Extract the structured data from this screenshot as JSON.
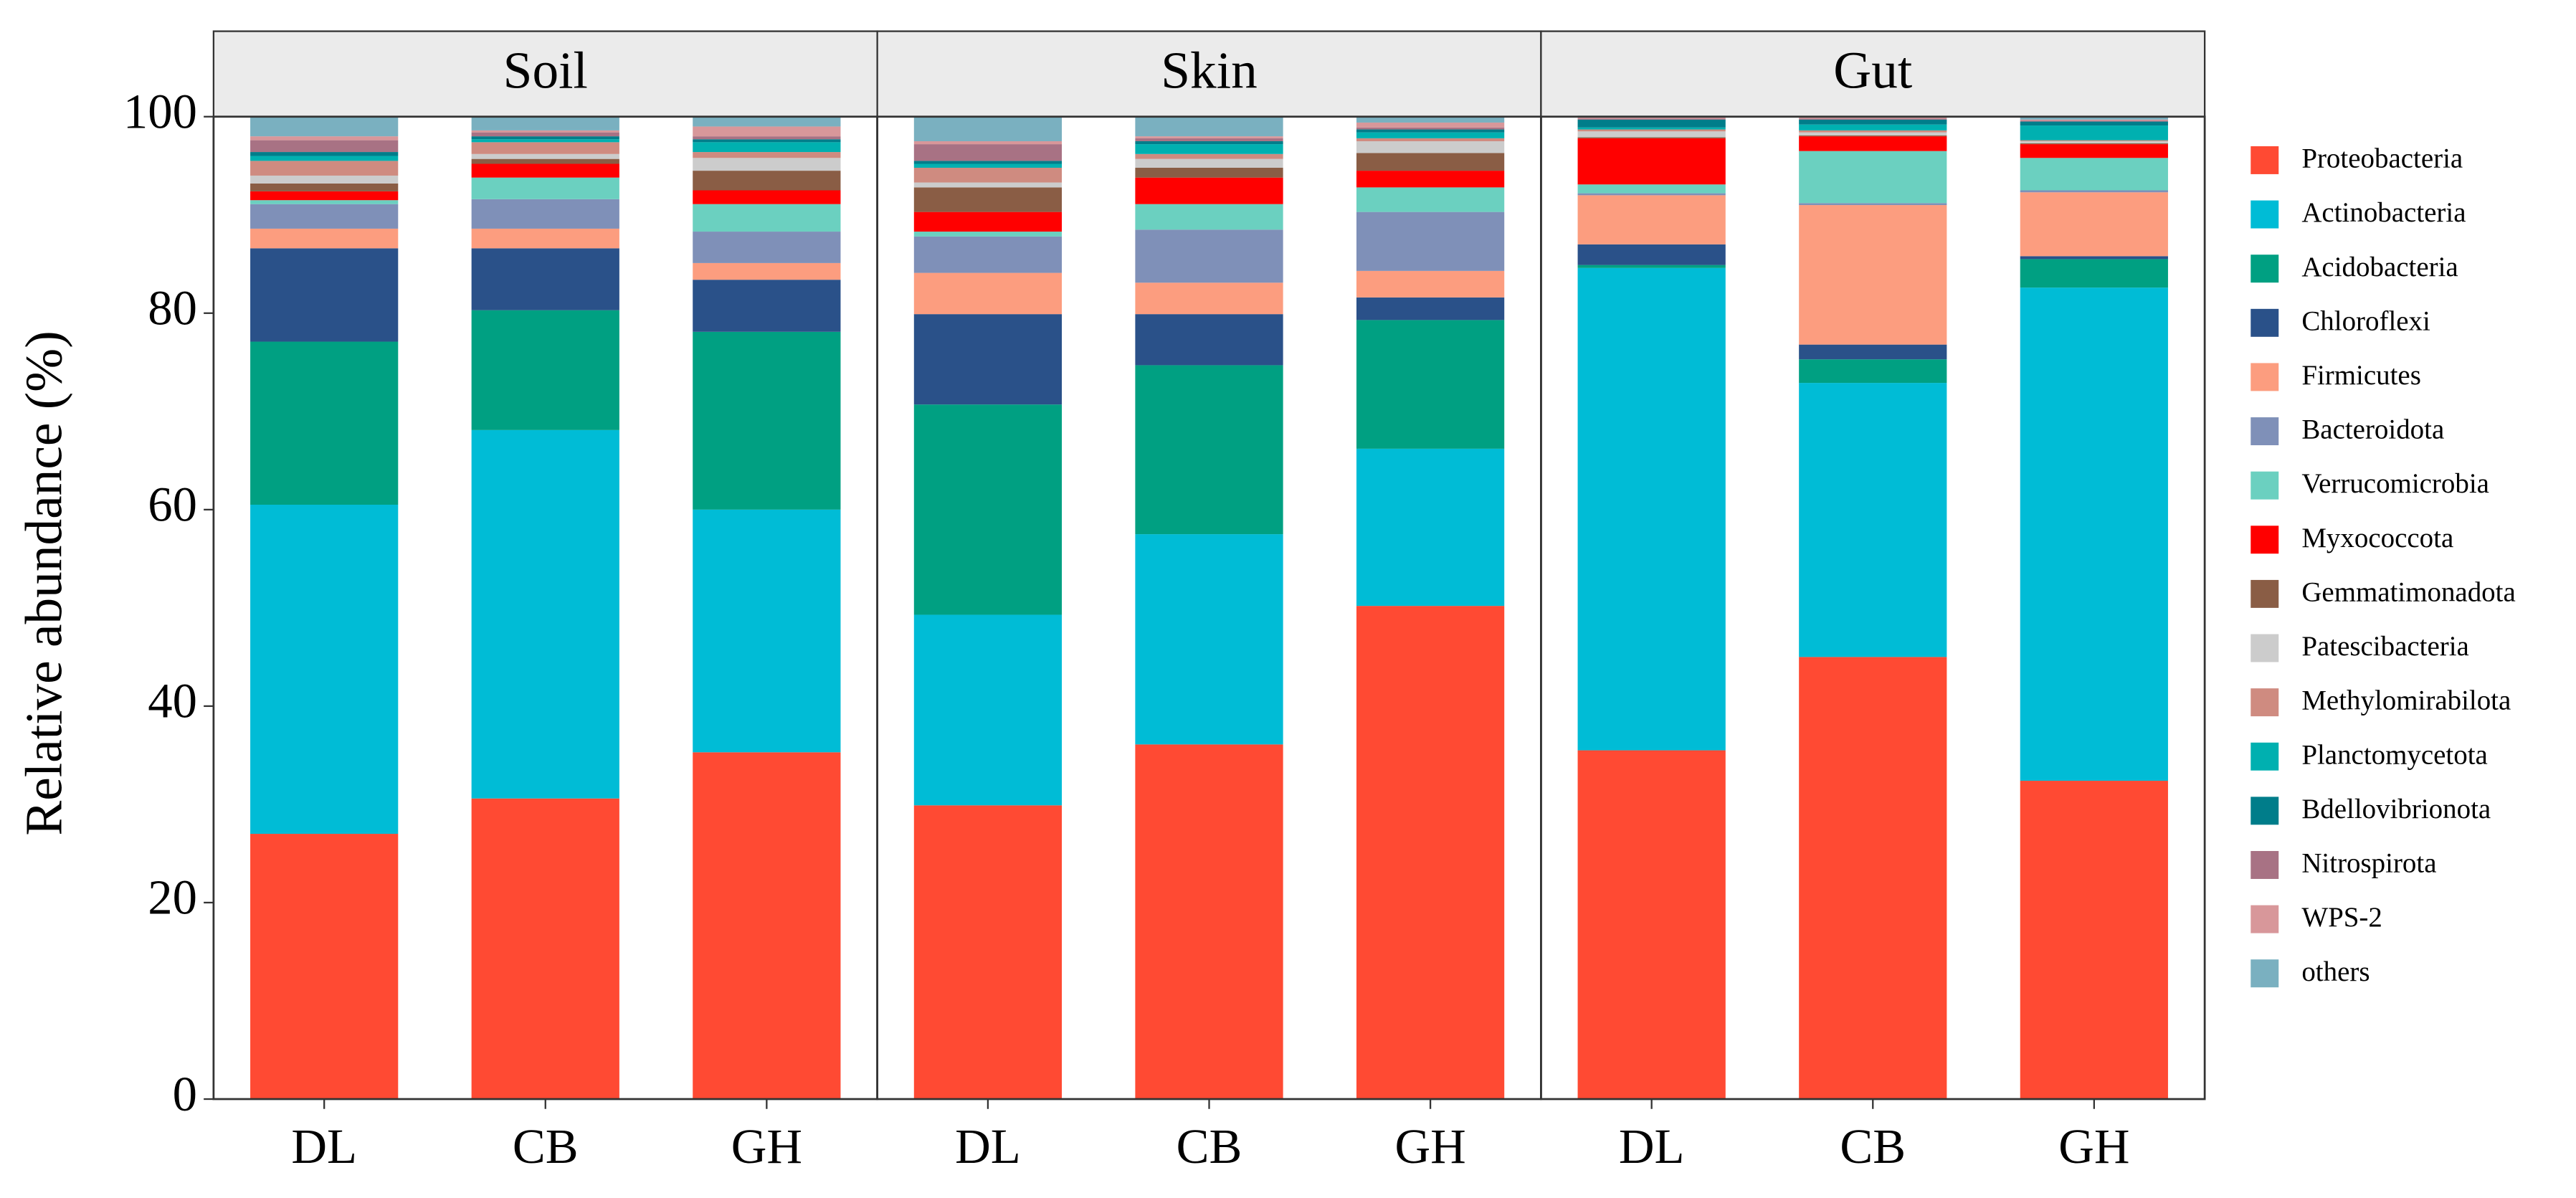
{
  "chart_data": {
    "type": "bar",
    "stacked": true,
    "ylabel": "Relative abundance (%)",
    "ylim": [
      0,
      100
    ],
    "yticks": [
      0,
      20,
      40,
      60,
      80,
      100
    ],
    "panels": [
      {
        "title": "Soil",
        "categories": [
          "DL",
          "CB",
          "GH"
        ]
      },
      {
        "title": "Skin",
        "categories": [
          "DL",
          "CB",
          "GH"
        ]
      },
      {
        "title": "Gut",
        "categories": [
          "DL",
          "CB",
          "GH"
        ]
      }
    ],
    "series": [
      {
        "name": "Proteobacteria",
        "color": "#ff4a33",
        "values": [
          [
            27,
            30.6,
            35.3
          ],
          [
            29.9,
            36.1,
            50.2
          ],
          [
            35.5,
            45,
            32.4
          ]
        ]
      },
      {
        "name": "Actinobacteria",
        "color": "#00bcd6",
        "values": [
          [
            33.5,
            37.5,
            24.7
          ],
          [
            19.4,
            21.4,
            16
          ],
          [
            49.1,
            27.9,
            50.2
          ]
        ]
      },
      {
        "name": "Acidobacteria",
        "color": "#00a082",
        "values": [
          [
            16.6,
            12.2,
            18.1
          ],
          [
            21.4,
            17.2,
            13.1
          ],
          [
            0.3,
            2.4,
            2.9
          ]
        ]
      },
      {
        "name": "Chloroflexi",
        "color": "#2a5189",
        "values": [
          [
            9.5,
            6.3,
            5.3
          ],
          [
            9.2,
            5.2,
            2.3
          ],
          [
            2.1,
            1.5,
            0.3
          ]
        ]
      },
      {
        "name": "Firmicutes",
        "color": "#fc9d7f",
        "values": [
          [
            2,
            2,
            1.7
          ],
          [
            4.2,
            3.2,
            2.7
          ],
          [
            5,
            14.2,
            6.5
          ]
        ]
      },
      {
        "name": "Bacteroidota",
        "color": "#7f90b8",
        "values": [
          [
            2.5,
            3,
            3.2
          ],
          [
            3.7,
            5.4,
            6
          ],
          [
            0.2,
            0.2,
            0.2
          ]
        ]
      },
      {
        "name": "Verrucomicrobia",
        "color": "#6bd0c0",
        "values": [
          [
            0.4,
            2.2,
            2.8
          ],
          [
            0.5,
            2.6,
            2.5
          ],
          [
            0.9,
            5.3,
            3.3
          ]
        ]
      },
      {
        "name": "Myxococcota",
        "color": "#ff0000",
        "values": [
          [
            0.9,
            1.4,
            1.4
          ],
          [
            2,
            2.7,
            1.7
          ],
          [
            4.7,
            1.5,
            1.4
          ]
        ]
      },
      {
        "name": "Gemmatimonadota",
        "color": "#8a5d45",
        "values": [
          [
            0.8,
            0.5,
            2
          ],
          [
            2.5,
            1,
            1.8
          ],
          [
            0.1,
            0.1,
            0.1
          ]
        ]
      },
      {
        "name": "Patescibacteria",
        "color": "#cccccc",
        "values": [
          [
            0.8,
            0.5,
            1.3
          ],
          [
            0.5,
            0.9,
            1.2
          ],
          [
            0.6,
            0.3,
            0.2
          ]
        ]
      },
      {
        "name": "Methylomirabilota",
        "color": "#cf8b80",
        "values": [
          [
            1.5,
            1.2,
            0.6
          ],
          [
            1.5,
            0.5,
            0.3
          ],
          [
            0.2,
            0.2,
            0.1
          ]
        ]
      },
      {
        "name": "Planctomycetota",
        "color": "#00b0b0",
        "values": [
          [
            0.5,
            0.3,
            1
          ],
          [
            0.4,
            1,
            0.6
          ],
          [
            0.2,
            0.6,
            1.5
          ]
        ]
      },
      {
        "name": "Bdellovibrionota",
        "color": "#007d8a",
        "values": [
          [
            0.4,
            0.3,
            0.3
          ],
          [
            0.3,
            0.3,
            0.3
          ],
          [
            0.8,
            0.5,
            0.4
          ]
        ]
      },
      {
        "name": "Nitrospirota",
        "color": "#a87284",
        "values": [
          [
            1.2,
            0.4,
            0.3
          ],
          [
            1.7,
            0.3,
            0.2
          ],
          [
            0.1,
            0.1,
            0.1
          ]
        ]
      },
      {
        "name": "WPS-2",
        "color": "#d8979a",
        "values": [
          [
            0.4,
            0.2,
            1
          ],
          [
            0.3,
            0.2,
            0.5
          ],
          [
            0.1,
            0.1,
            0.1
          ]
        ]
      },
      {
        "name": "others",
        "color": "#7ab0c0",
        "values": [
          [
            2,
            1.4,
            1
          ],
          [
            2.5,
            2,
            0.6
          ],
          [
            0.2,
            0.1,
            0.3
          ]
        ]
      }
    ]
  }
}
